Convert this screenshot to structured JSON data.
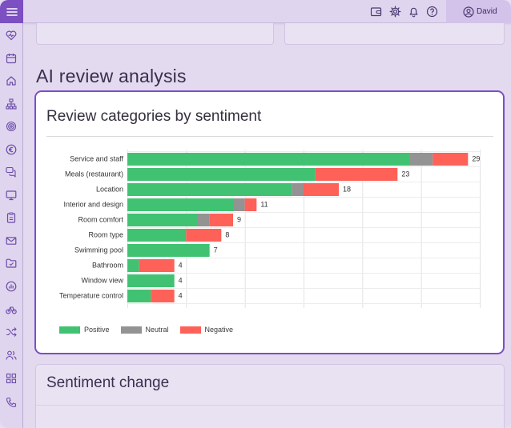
{
  "topbar": {
    "icons": [
      "wallet-icon",
      "gear-icon",
      "bell-icon",
      "help-icon",
      "user-circle-icon"
    ],
    "user_name": "David"
  },
  "sidebar": {
    "icons": [
      "menu-icon",
      "heart-pulse-icon",
      "calendar-icon",
      "home-icon",
      "hierarchy-icon",
      "fingerprint-icon",
      "euro-icon",
      "chat-icon",
      "monitor-icon",
      "clipboard-icon",
      "mail-icon",
      "folder-check-icon",
      "chart-icon",
      "scale-icon",
      "shuffle-icon",
      "users-icon",
      "grid-icon",
      "phone-icon"
    ]
  },
  "main": {
    "section_title": "AI review analysis",
    "chart_card_title": "Review categories by sentiment",
    "next_card_title": "Sentiment change"
  },
  "colors": {
    "accent": "#7c4fc2",
    "positive": "#40c272",
    "neutral": "#939393",
    "negative": "#fd6158"
  },
  "chart_data": {
    "type": "bar",
    "orientation": "horizontal",
    "stacked": true,
    "categories": [
      "Service and staff",
      "Meals (restaurant)",
      "Location",
      "Interior and design",
      "Room comfort",
      "Room type",
      "Swimming pool",
      "Bathroom",
      "Window view",
      "Temperature control"
    ],
    "series": [
      {
        "name": "Positive",
        "values": [
          24,
          16,
          14,
          9,
          6,
          5,
          7,
          1,
          4,
          2
        ]
      },
      {
        "name": "Neutral",
        "values": [
          2,
          0,
          1,
          1,
          1,
          0,
          0,
          0,
          0,
          0
        ]
      },
      {
        "name": "Negative",
        "values": [
          3,
          7,
          3,
          1,
          2,
          3,
          0,
          3,
          0,
          2
        ]
      }
    ],
    "totals": [
      29,
      23,
      18,
      11,
      9,
      8,
      7,
      4,
      4,
      4
    ],
    "xlim": [
      0,
      30
    ],
    "grid": true,
    "legend": "bottom-left"
  }
}
